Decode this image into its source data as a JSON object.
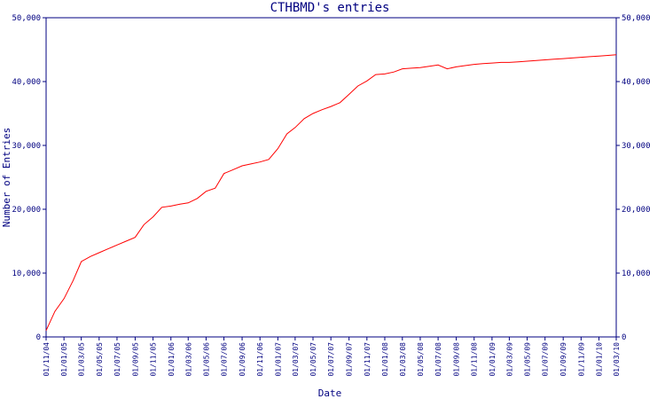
{
  "chart_data": {
    "type": "line",
    "title": "CTHBMD's entries",
    "xlabel": "Date",
    "ylabel": "Number of Entries",
    "ylim": [
      0,
      50000
    ],
    "y_ticks": [
      "0",
      "10,000",
      "20,000",
      "30,000",
      "40,000",
      "50,000"
    ],
    "x_ticks": [
      "01/11/04",
      "01/01/05",
      "01/03/05",
      "01/05/05",
      "01/07/05",
      "01/09/05",
      "01/11/05",
      "01/01/06",
      "01/03/06",
      "01/05/06",
      "01/07/06",
      "01/09/06",
      "01/11/06",
      "01/01/07",
      "01/03/07",
      "01/05/07",
      "01/07/07",
      "01/09/07",
      "01/11/07",
      "01/01/08",
      "01/03/08",
      "01/05/08",
      "01/07/08",
      "01/09/08",
      "01/11/08",
      "01/01/09",
      "01/03/09",
      "01/05/09",
      "01/07/09",
      "01/09/09",
      "01/11/09",
      "01/01/10",
      "01/03/10"
    ],
    "grid": false,
    "series": [
      {
        "color": "#ff0000",
        "x": [
          "2004-11-01",
          "2004-12-01",
          "2005-01-01",
          "2005-02-01",
          "2005-03-01",
          "2005-04-01",
          "2005-05-01",
          "2005-06-01",
          "2005-07-01",
          "2005-08-01",
          "2005-09-01",
          "2005-10-01",
          "2005-11-01",
          "2005-12-01",
          "2006-01-01",
          "2006-02-01",
          "2006-03-01",
          "2006-04-01",
          "2006-05-01",
          "2006-06-01",
          "2006-07-01",
          "2006-08-01",
          "2006-09-01",
          "2006-10-01",
          "2006-11-01",
          "2006-12-01",
          "2007-01-01",
          "2007-02-01",
          "2007-03-01",
          "2007-04-01",
          "2007-05-01",
          "2007-06-01",
          "2007-07-01",
          "2007-08-01",
          "2007-09-01",
          "2007-10-01",
          "2007-11-01",
          "2007-12-01",
          "2008-01-01",
          "2008-02-01",
          "2008-03-01",
          "2008-04-01",
          "2008-05-01",
          "2008-06-01",
          "2008-07-01",
          "2008-08-01",
          "2008-09-01",
          "2008-10-01",
          "2008-11-01",
          "2008-12-01",
          "2009-01-01",
          "2009-02-01",
          "2009-03-01",
          "2009-04-01",
          "2009-05-01",
          "2009-06-01",
          "2009-07-01",
          "2009-08-01",
          "2009-09-01",
          "2009-10-01",
          "2009-11-01",
          "2009-12-01",
          "2010-01-01",
          "2010-02-01",
          "2010-03-01"
        ],
        "values": [
          1000,
          4000,
          6000,
          8800,
          11800,
          12600,
          13200,
          13800,
          14400,
          15000,
          15600,
          17600,
          18800,
          20300,
          20500,
          20800,
          21000,
          21700,
          22800,
          23300,
          25600,
          26200,
          26800,
          27100,
          27400,
          27800,
          29500,
          31800,
          32800,
          34200,
          35000,
          35600,
          36100,
          36700,
          38000,
          39300,
          40100,
          41100,
          41200,
          41500,
          42000,
          42100,
          42200,
          42400,
          42600,
          42000,
          42300,
          42500,
          42700,
          42800,
          42900,
          43000,
          43000,
          43100,
          43200,
          43300,
          43400,
          43500,
          43600,
          43700,
          43800,
          43900,
          44000,
          44100,
          44200
        ]
      }
    ]
  }
}
